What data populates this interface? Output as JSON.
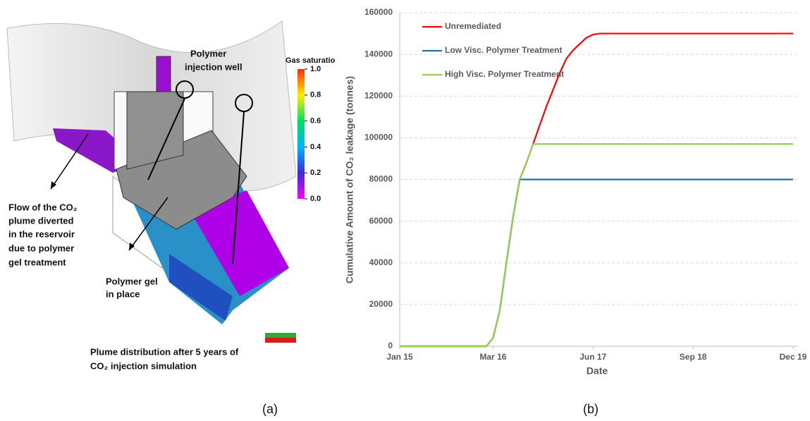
{
  "panel_a": {
    "well_label": [
      "Polymer",
      "injection well"
    ],
    "flow_label": [
      "Flow of the CO₂",
      "plume diverted",
      "in the reservoir",
      "due to polymer",
      "gel treatment"
    ],
    "gel_label": [
      "Polymer gel",
      "in place"
    ],
    "plume_label": [
      "Plume distribution after 5 years of",
      "CO₂ injection simulation"
    ],
    "colorbar": {
      "title": "Gas saturatio",
      "ticks": [
        {
          "value": 0,
          "label": "0.0"
        },
        {
          "value": 0.2,
          "label": "0.2"
        },
        {
          "value": 0.4,
          "label": "0.4"
        },
        {
          "value": 0.6,
          "label": "0.6"
        },
        {
          "value": 0.8,
          "label": "0.8"
        },
        {
          "value": 1,
          "label": "1.0"
        }
      ],
      "lim": [
        0,
        1
      ]
    }
  },
  "captions": [
    "(a)",
    "(b)"
  ],
  "chart_data": {
    "type": "line",
    "x_label": "Date",
    "y_label": "Cumulative Amount of CO₂ leakage (tonnes)",
    "x": [
      "2015-01",
      "2016-02",
      "2016-03",
      "2016-04",
      "2016-05",
      "2016-06",
      "2016-07",
      "2016-08",
      "2016-09",
      "2016-10",
      "2016-11",
      "2016-12",
      "2017-01",
      "2017-02",
      "2017-03",
      "2017-04",
      "2017-05",
      "2017-06",
      "2017-07",
      "2019-12"
    ],
    "series": [
      {
        "name": "Unremediated",
        "color": "#ff0000",
        "values": [
          0,
          0,
          4000,
          17000,
          40000,
          62000,
          80000,
          88000,
          97000,
          106000,
          115000,
          123000,
          131000,
          138000,
          142000,
          145000,
          148000,
          149500,
          150000,
          150000
        ]
      },
      {
        "name": "Low Visc. Polymer Treatment",
        "color": "#1f6fb4",
        "values": [
          0,
          0,
          4000,
          17000,
          40000,
          62000,
          80000,
          80000,
          80000,
          80000,
          80000,
          80000,
          80000,
          80000,
          80000,
          80000,
          80000,
          80000,
          80000,
          80000
        ]
      },
      {
        "name": "High Visc. Polymer Treatment",
        "color": "#92d050",
        "values": [
          0,
          0,
          4000,
          17000,
          40000,
          62000,
          80000,
          88000,
          97000,
          97000,
          97000,
          97000,
          97000,
          97000,
          97000,
          97000,
          97000,
          97000,
          97000,
          97000
        ]
      }
    ],
    "xlim": [
      "2015-01",
      "2019-12"
    ],
    "xticks": [
      {
        "value": "2015-01",
        "label": "Jan 15"
      },
      {
        "value": "2016-03",
        "label": "Mar 16"
      },
      {
        "value": "2017-06",
        "label": "Jun 17"
      },
      {
        "value": "2018-09",
        "label": "Sep 18"
      },
      {
        "value": "2019-12",
        "label": "Dec 19"
      }
    ],
    "ylim": [
      0,
      160000
    ],
    "yticks": [
      0,
      20000,
      40000,
      60000,
      80000,
      100000,
      120000,
      140000,
      160000
    ],
    "grid": true,
    "legend": "top-left"
  }
}
